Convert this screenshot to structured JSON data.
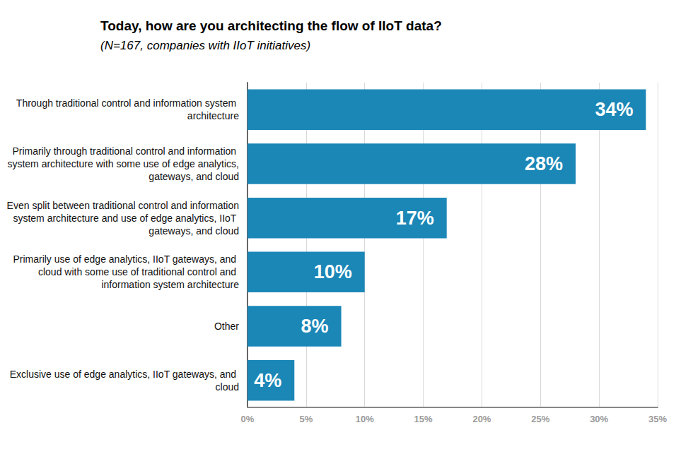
{
  "chart_data": {
    "type": "bar",
    "title": "Today, how are you architecting the flow of IIoT data?",
    "subtitle": "(N=167, companies with IIoT initiatives)",
    "orientation": "horizontal",
    "categories": [
      "Through traditional control and information system architecture",
      "Primarily through traditional control and information system architecture with some use of edge analytics, gateways, and cloud",
      "Even split between traditional control and information system architecture and use of edge analytics, IIoT gateways, and cloud",
      "Primarily use of edge analytics, IIoT gateways, and cloud with some use of traditional control and information system architecture",
      "Other",
      "Exclusive use of edge analytics, IIoT gateways, and cloud"
    ],
    "values": [
      34,
      28,
      17,
      10,
      8,
      4
    ],
    "value_labels": [
      "34%",
      "28%",
      "17%",
      "10%",
      "8%",
      "4%"
    ],
    "data_labels": true,
    "color": "#1b87b7",
    "xlim": [
      0,
      35
    ],
    "xticks": [
      {
        "value": 0,
        "label": "0%"
      },
      {
        "value": 5,
        "label": "5%"
      },
      {
        "value": 10,
        "label": "10%"
      },
      {
        "value": 15,
        "label": "15%"
      },
      {
        "value": 20,
        "label": "20%"
      },
      {
        "value": 25,
        "label": "25%"
      },
      {
        "value": 30,
        "label": "30%"
      },
      {
        "value": 35,
        "label": "35%"
      }
    ],
    "grid": true
  }
}
